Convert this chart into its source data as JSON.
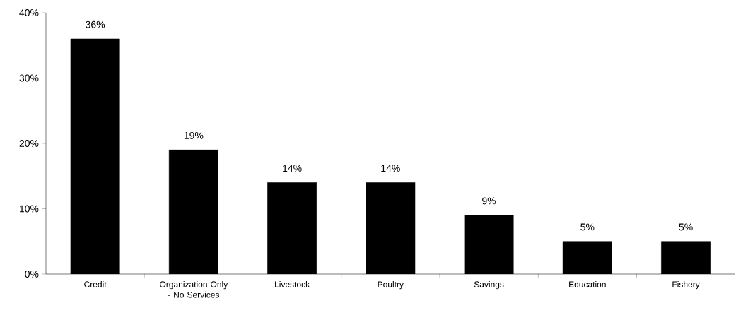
{
  "chart_data": {
    "type": "bar",
    "categories": [
      "Credit",
      "Organization Only - No Services",
      "Livestock",
      "Poultry",
      "Savings",
      "Education",
      "Fishery"
    ],
    "values": [
      36,
      19,
      14,
      14,
      9,
      5,
      5
    ],
    "value_labels": [
      "36%",
      "19%",
      "14%",
      "14%",
      "9%",
      "5%",
      "5%"
    ],
    "color": "#000000",
    "ylim": [
      0,
      40
    ],
    "yticks": [
      {
        "value": 0,
        "label": "0%"
      },
      {
        "value": 10,
        "label": "10%"
      },
      {
        "value": 20,
        "label": "20%"
      },
      {
        "value": 30,
        "label": "30%"
      },
      {
        "value": 40,
        "label": "40%"
      }
    ],
    "grid": false
  }
}
